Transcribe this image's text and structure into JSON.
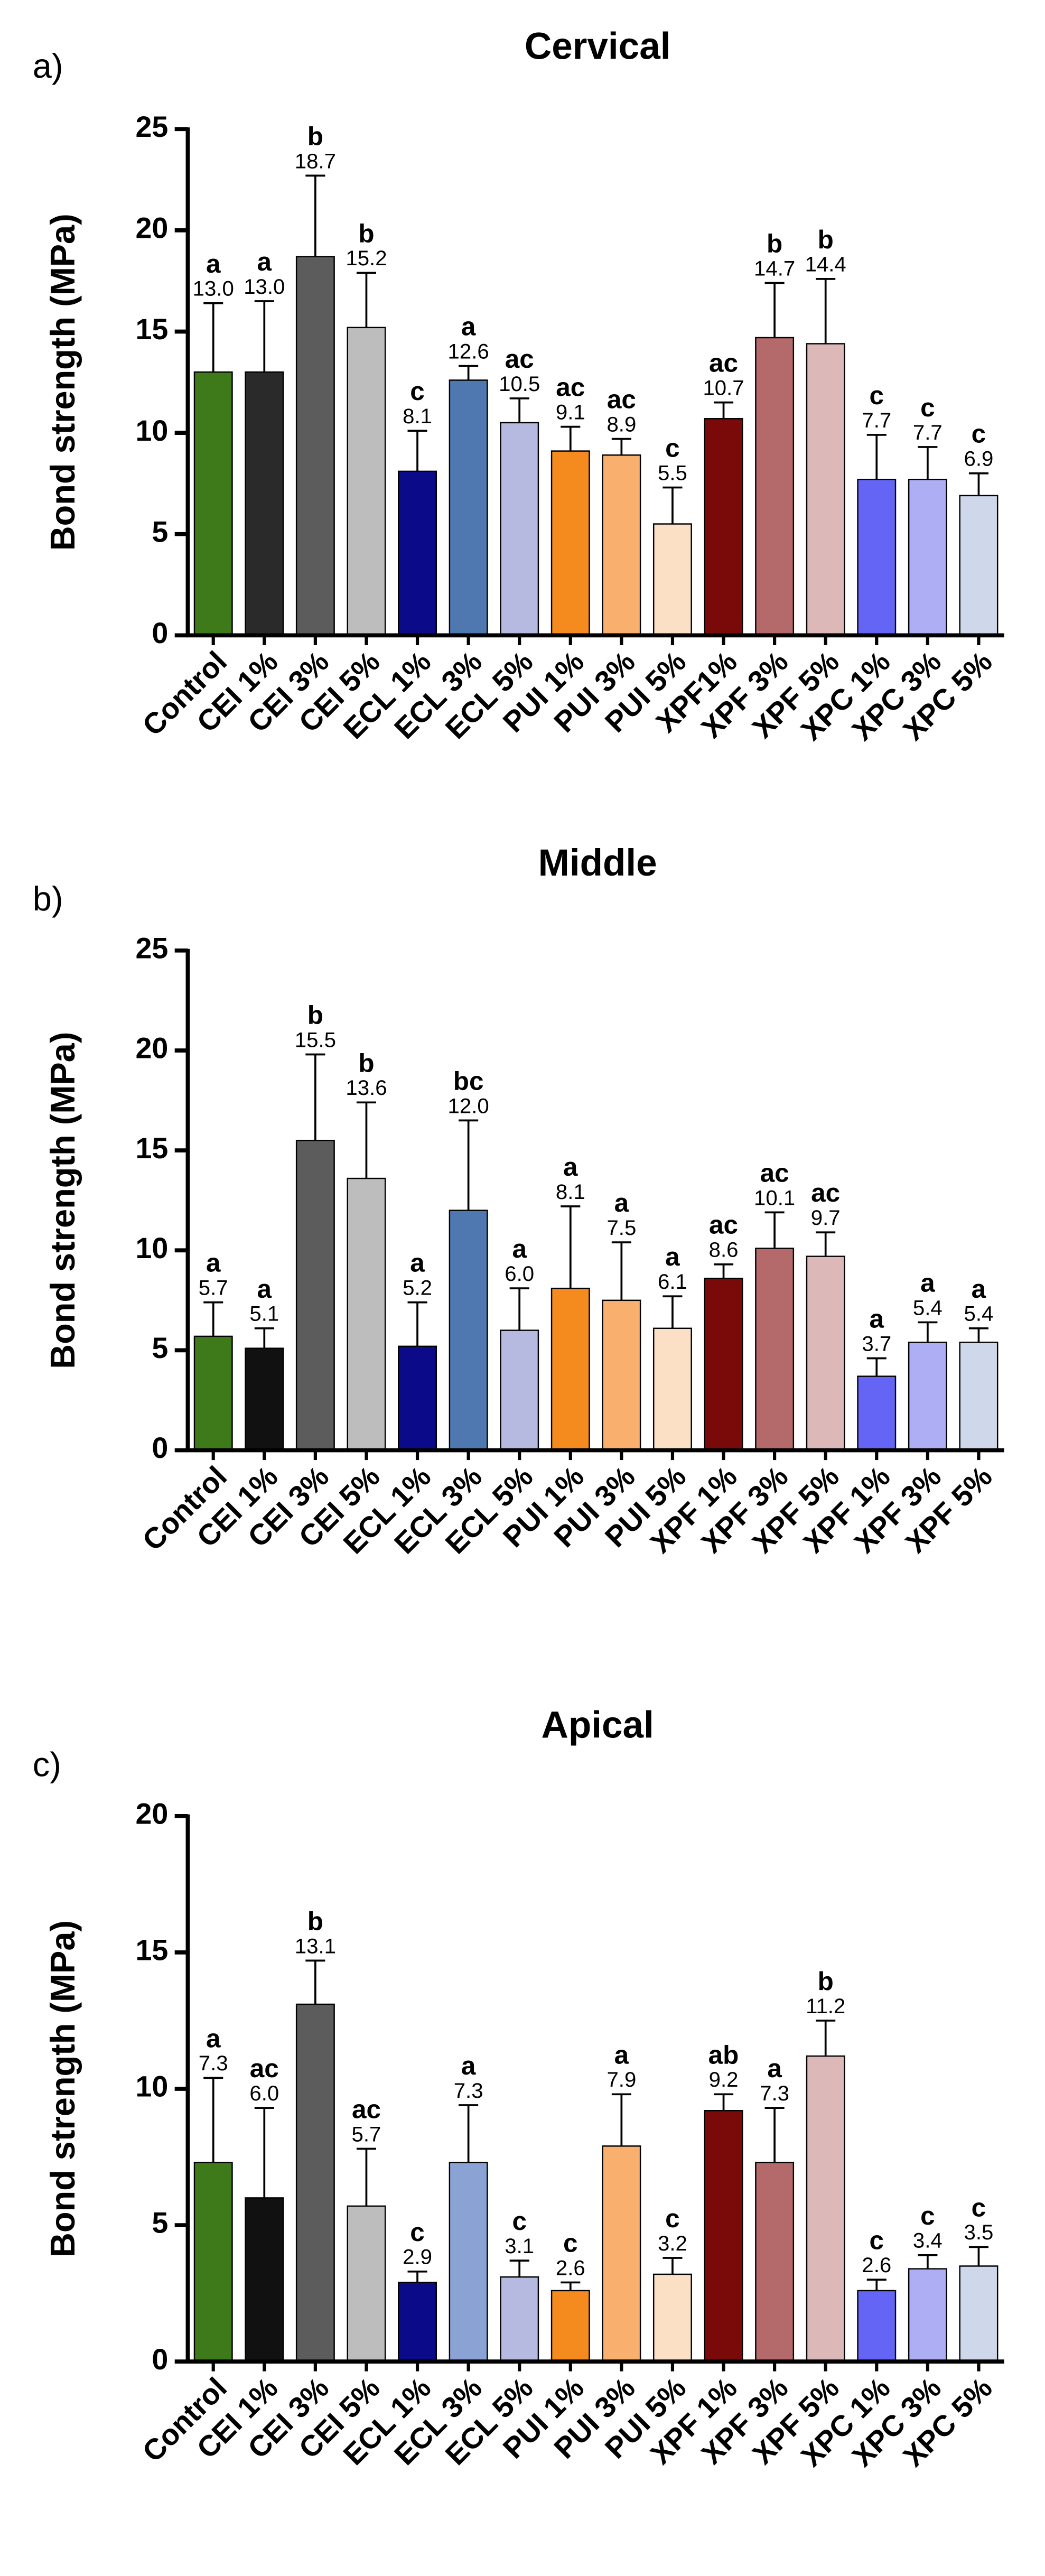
{
  "chart_data": [
    {
      "type": "bar",
      "panel": "a)",
      "title": "Cervical",
      "ylabel": "Bond strength (MPa)",
      "categories": [
        "Control",
        "CEI 1%",
        "CEI 3%",
        "CEI 5%",
        "ECL 1%",
        "ECL 3%",
        "ECL 5%",
        "PUI 1%",
        "PUI 3%",
        "PUI 5%",
        "XPF1%",
        "XPF 3%",
        "XPF 5%",
        "XPC 1%",
        "XPC 3%",
        "XPC 5%"
      ],
      "values": [
        13.0,
        13.0,
        18.7,
        15.2,
        8.1,
        12.6,
        10.5,
        9.1,
        8.9,
        5.5,
        10.7,
        14.7,
        14.4,
        7.7,
        7.7,
        6.9
      ],
      "value_labels": [
        "13.0",
        "13.0",
        "18.7",
        "15.2",
        "8.1",
        "12.6",
        "10.5",
        "9.1",
        "8.9",
        "5.5",
        "10.7",
        "14.7",
        "14.4",
        "7.7",
        "7.7",
        "6.9"
      ],
      "errors": [
        3.4,
        3.5,
        4.0,
        2.7,
        2.0,
        0.7,
        1.2,
        1.2,
        0.8,
        1.8,
        0.8,
        2.7,
        3.2,
        2.2,
        1.6,
        1.1
      ],
      "letters": [
        "a",
        "a",
        "b",
        "b",
        "c",
        "a",
        "ac",
        "ac",
        "ac",
        "c",
        "ac",
        "b",
        "b",
        "c",
        "c",
        "c"
      ],
      "colors": [
        "#3f7a1a",
        "#2a2a2a",
        "#5c5c5c",
        "#bdbdbd",
        "#0b0b8a",
        "#4f78b0",
        "#b6b9e0",
        "#f58a1f",
        "#f9b06e",
        "#fbe0c6",
        "#7a0a0a",
        "#b46a6a",
        "#ddb8b8",
        "#6565f5",
        "#aeaef5",
        "#cfd8ea"
      ],
      "ylim": [
        0,
        25
      ],
      "yticks": [
        0,
        5,
        10,
        15,
        20,
        25
      ]
    },
    {
      "type": "bar",
      "panel": "b)",
      "title": "Middle",
      "ylabel": "Bond strength (MPa)",
      "categories": [
        "Control",
        "CEI 1%",
        "CEI 3%",
        "CEI 5%",
        "ECL 1%",
        "ECL 3%",
        "ECL 5%",
        "PUI 1%",
        "PUI 3%",
        "PUI 5%",
        "XPF 1%",
        "XPF 3%",
        "XPF 5%",
        "XPF 1%",
        "XPF 3%",
        "XPF 5%"
      ],
      "values": [
        5.7,
        5.1,
        15.5,
        13.6,
        5.2,
        12.0,
        6.0,
        8.1,
        7.5,
        6.1,
        8.6,
        10.1,
        9.7,
        3.7,
        5.4,
        5.4
      ],
      "value_labels": [
        "5.7",
        "5.1",
        "15.5",
        "13.6",
        "5.2",
        "12.0",
        "6.0",
        "8.1",
        "7.5",
        "6.1",
        "8.6",
        "10.1",
        "9.7",
        "3.7",
        "5.4",
        "5.4"
      ],
      "errors": [
        1.7,
        1.0,
        4.3,
        3.8,
        2.2,
        4.5,
        2.1,
        4.1,
        2.9,
        1.6,
        0.7,
        1.8,
        1.2,
        0.9,
        1.0,
        0.7
      ],
      "letters": [
        "a",
        "a",
        "b",
        "b",
        "a",
        "bc",
        "a",
        "a",
        "a",
        "a",
        "ac",
        "ac",
        "ac",
        "a",
        "a",
        "a"
      ],
      "colors": [
        "#3f7a1a",
        "#111111",
        "#5c5c5c",
        "#bdbdbd",
        "#0b0b8a",
        "#4f78b0",
        "#b6b9e0",
        "#f58a1f",
        "#f9b06e",
        "#fbe0c6",
        "#7a0a0a",
        "#b46a6a",
        "#ddb8b8",
        "#6565f5",
        "#aeaef5",
        "#cfd8ea"
      ],
      "ylim": [
        0,
        25
      ],
      "yticks": [
        0,
        5,
        10,
        15,
        20,
        25
      ]
    },
    {
      "type": "bar",
      "panel": "c)",
      "title": "Apical",
      "ylabel": "Bond strength (MPa)",
      "categories": [
        "Control",
        "CEI 1%",
        "CEI 3%",
        "CEI 5%",
        "ECL 1%",
        "ECL 3%",
        "ECL 5%",
        "PUI 1%",
        "PUI 3%",
        "PUI 5%",
        "XPF 1%",
        "XPF 3%",
        "XPF 5%",
        "XPC 1%",
        "XPC 3%",
        "XPC 5%"
      ],
      "values": [
        7.3,
        6.0,
        13.1,
        5.7,
        2.9,
        7.3,
        3.1,
        2.6,
        7.9,
        3.2,
        9.2,
        7.3,
        11.2,
        2.6,
        3.4,
        3.5
      ],
      "value_labels": [
        "7.3",
        "6.0",
        "13.1",
        "5.7",
        "2.9",
        "7.3",
        "3.1",
        "2.6",
        "7.9",
        "3.2",
        "9.2",
        "7.3",
        "11.2",
        "2.6",
        "3.4",
        "3.5"
      ],
      "errors": [
        3.1,
        3.3,
        1.6,
        2.1,
        0.4,
        2.1,
        0.6,
        0.3,
        1.9,
        0.6,
        0.6,
        2.0,
        1.3,
        0.4,
        0.5,
        0.7
      ],
      "letters": [
        "a",
        "ac",
        "b",
        "ac",
        "c",
        "a",
        "c",
        "c",
        "a",
        "c",
        "ab",
        "a",
        "b",
        "c",
        "c",
        "c"
      ],
      "colors": [
        "#3f7a1a",
        "#111111",
        "#5c5c5c",
        "#bdbdbd",
        "#0b0b8a",
        "#8aa3d4",
        "#b6b9e0",
        "#f58a1f",
        "#f9b06e",
        "#fbe0c6",
        "#7a0a0a",
        "#b46a6a",
        "#ddb8b8",
        "#6565f5",
        "#aeaef5",
        "#cfd8ea"
      ],
      "ylim": [
        0,
        20
      ],
      "yticks": [
        0,
        5,
        10,
        15,
        20
      ]
    }
  ]
}
